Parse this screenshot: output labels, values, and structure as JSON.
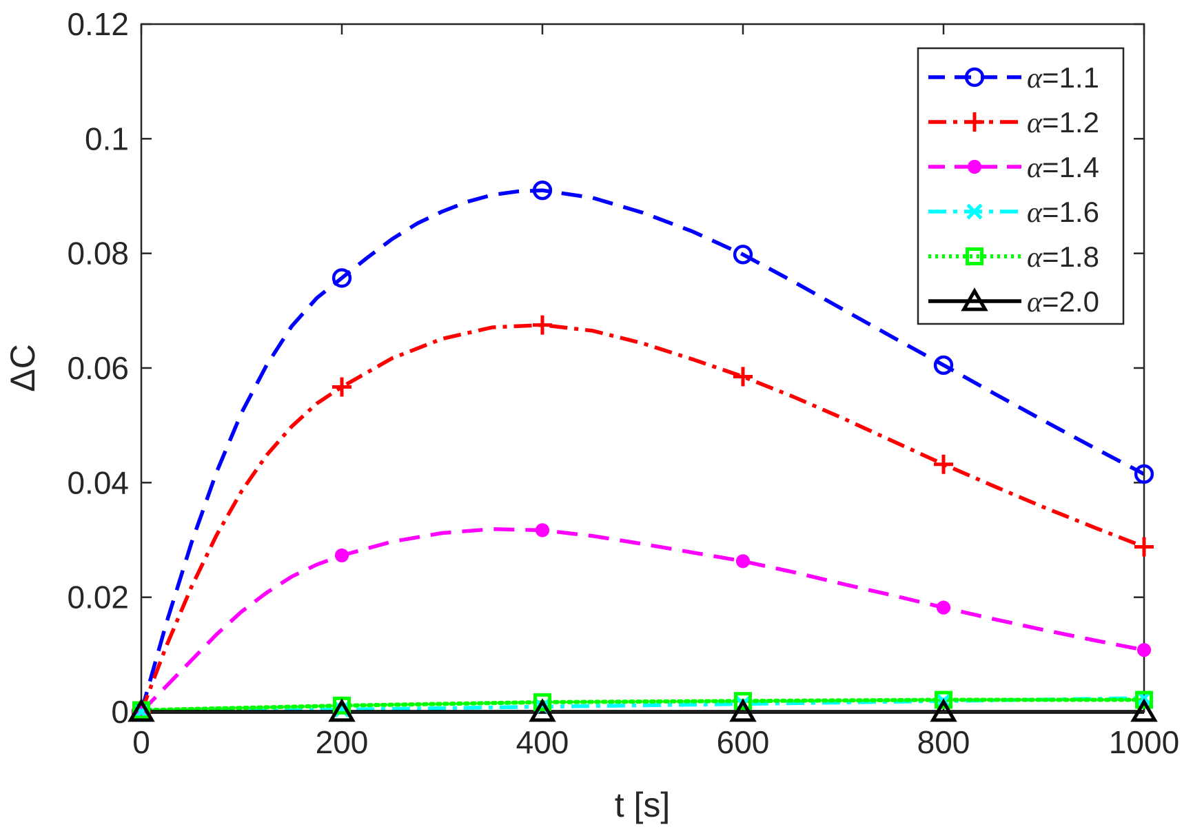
{
  "chart_data": {
    "type": "line",
    "title": "",
    "xlabel": "t [s]",
    "ylabel": "ΔC",
    "xlim": [
      0,
      1000
    ],
    "ylim": [
      0,
      0.12
    ],
    "xticks": [
      0,
      200,
      400,
      600,
      800,
      1000
    ],
    "xtick_labels": [
      "0",
      "200",
      "400",
      "600",
      "800",
      "1000"
    ],
    "yticks": [
      0,
      0.02,
      0.04,
      0.06,
      0.08,
      0.1,
      0.12
    ],
    "ytick_labels": [
      "0",
      "0.02",
      "0.04",
      "0.06",
      "0.08",
      "0.1",
      "0.12"
    ],
    "grid": false,
    "legend_position": "top-right",
    "series": [
      {
        "name": "α=1.1",
        "symbol": "α",
        "value_text": "=1.1",
        "color": "#0000ff",
        "line_style": "dashed",
        "marker": "circle",
        "x": [
          0,
          200,
          400,
          600,
          800,
          1000
        ],
        "values": [
          0,
          0.0757,
          0.091,
          0.0798,
          0.0605,
          0.0415
        ],
        "curve": [
          [
            0,
            0
          ],
          [
            25,
            0.0155
          ],
          [
            50,
            0.0295
          ],
          [
            75,
            0.0418
          ],
          [
            100,
            0.0522
          ],
          [
            125,
            0.0605
          ],
          [
            150,
            0.0673
          ],
          [
            175,
            0.0722
          ],
          [
            200,
            0.0757
          ],
          [
            225,
            0.0792
          ],
          [
            250,
            0.0825
          ],
          [
            275,
            0.0852
          ],
          [
            300,
            0.0873
          ],
          [
            325,
            0.089
          ],
          [
            350,
            0.0902
          ],
          [
            375,
            0.0908
          ],
          [
            400,
            0.091
          ],
          [
            450,
            0.0897
          ],
          [
            500,
            0.0871
          ],
          [
            550,
            0.0838
          ],
          [
            600,
            0.0798
          ],
          [
            650,
            0.0751
          ],
          [
            700,
            0.0702
          ],
          [
            750,
            0.0653
          ],
          [
            800,
            0.0605
          ],
          [
            850,
            0.0556
          ],
          [
            900,
            0.0508
          ],
          [
            950,
            0.0461
          ],
          [
            1000,
            0.0415
          ]
        ]
      },
      {
        "name": "α=1.2",
        "symbol": "α",
        "value_text": "=1.2",
        "color": "#ff0000",
        "line_style": "dashdot",
        "marker": "plus",
        "x": [
          0,
          200,
          400,
          600,
          800,
          1000
        ],
        "values": [
          0,
          0.0567,
          0.0675,
          0.0585,
          0.0432,
          0.0288
        ],
        "curve": [
          [
            0,
            0
          ],
          [
            25,
            0.0115
          ],
          [
            50,
            0.0218
          ],
          [
            75,
            0.0308
          ],
          [
            100,
            0.0385
          ],
          [
            125,
            0.0448
          ],
          [
            150,
            0.0498
          ],
          [
            175,
            0.0538
          ],
          [
            200,
            0.0567
          ],
          [
            250,
            0.0617
          ],
          [
            300,
            0.0651
          ],
          [
            350,
            0.0671
          ],
          [
            400,
            0.0675
          ],
          [
            450,
            0.0665
          ],
          [
            500,
            0.0643
          ],
          [
            550,
            0.0615
          ],
          [
            600,
            0.0585
          ],
          [
            650,
            0.055
          ],
          [
            700,
            0.0512
          ],
          [
            750,
            0.0472
          ],
          [
            800,
            0.0432
          ],
          [
            850,
            0.0394
          ],
          [
            900,
            0.0357
          ],
          [
            950,
            0.0322
          ],
          [
            1000,
            0.0288
          ]
        ]
      },
      {
        "name": "α=1.4",
        "symbol": "α",
        "value_text": "=1.4",
        "color": "#ff00ff",
        "line_style": "dashed",
        "marker": "dot",
        "x": [
          0,
          200,
          400,
          600,
          800,
          1000
        ],
        "values": [
          0,
          0.0273,
          0.0317,
          0.0263,
          0.0182,
          0.0108
        ],
        "curve": [
          [
            0,
            0
          ],
          [
            25,
            0.0045
          ],
          [
            50,
            0.009
          ],
          [
            75,
            0.0135
          ],
          [
            100,
            0.0175
          ],
          [
            125,
            0.0208
          ],
          [
            150,
            0.0236
          ],
          [
            175,
            0.0257
          ],
          [
            200,
            0.0273
          ],
          [
            250,
            0.0297
          ],
          [
            300,
            0.0312
          ],
          [
            350,
            0.0319
          ],
          [
            400,
            0.0317
          ],
          [
            450,
            0.0307
          ],
          [
            500,
            0.0293
          ],
          [
            550,
            0.0278
          ],
          [
            600,
            0.0263
          ],
          [
            650,
            0.0244
          ],
          [
            700,
            0.0223
          ],
          [
            750,
            0.0203
          ],
          [
            800,
            0.0182
          ],
          [
            850,
            0.0162
          ],
          [
            900,
            0.0143
          ],
          [
            950,
            0.0125
          ],
          [
            1000,
            0.0108
          ]
        ]
      },
      {
        "name": "α=1.6",
        "symbol": "α",
        "value_text": "=1.6",
        "color": "#00ffff",
        "line_style": "dashdot",
        "marker": "x",
        "x": [
          0,
          200,
          400,
          600,
          800,
          1000
        ],
        "values": [
          0,
          0.0004,
          0.0009,
          0.0014,
          0.0019,
          0.0024
        ],
        "curve": [
          [
            0,
            0
          ],
          [
            200,
            0.0004
          ],
          [
            400,
            0.0009
          ],
          [
            600,
            0.0014
          ],
          [
            800,
            0.0019
          ],
          [
            1000,
            0.0024
          ]
        ]
      },
      {
        "name": "α=1.8",
        "symbol": "α",
        "value_text": "=1.8",
        "color": "#00ff00",
        "line_style": "dotted",
        "marker": "square",
        "x": [
          0,
          200,
          400,
          600,
          800,
          1000
        ],
        "values": [
          0.0003,
          0.0011,
          0.0017,
          0.0019,
          0.0021,
          0.0021
        ],
        "curve": [
          [
            0,
            0.0003
          ],
          [
            200,
            0.0011
          ],
          [
            400,
            0.0017
          ],
          [
            600,
            0.0019
          ],
          [
            800,
            0.0021
          ],
          [
            1000,
            0.0021
          ]
        ]
      },
      {
        "name": "α=2.0",
        "symbol": "α",
        "value_text": "=2.0",
        "color": "#000000",
        "line_style": "solid",
        "marker": "triangle",
        "x": [
          0,
          200,
          400,
          600,
          800,
          1000
        ],
        "values": [
          0,
          0,
          0,
          0,
          0,
          0
        ],
        "curve": [
          [
            0,
            0
          ],
          [
            200,
            0
          ],
          [
            400,
            0
          ],
          [
            600,
            0
          ],
          [
            800,
            0
          ],
          [
            1000,
            0
          ]
        ]
      }
    ]
  }
}
